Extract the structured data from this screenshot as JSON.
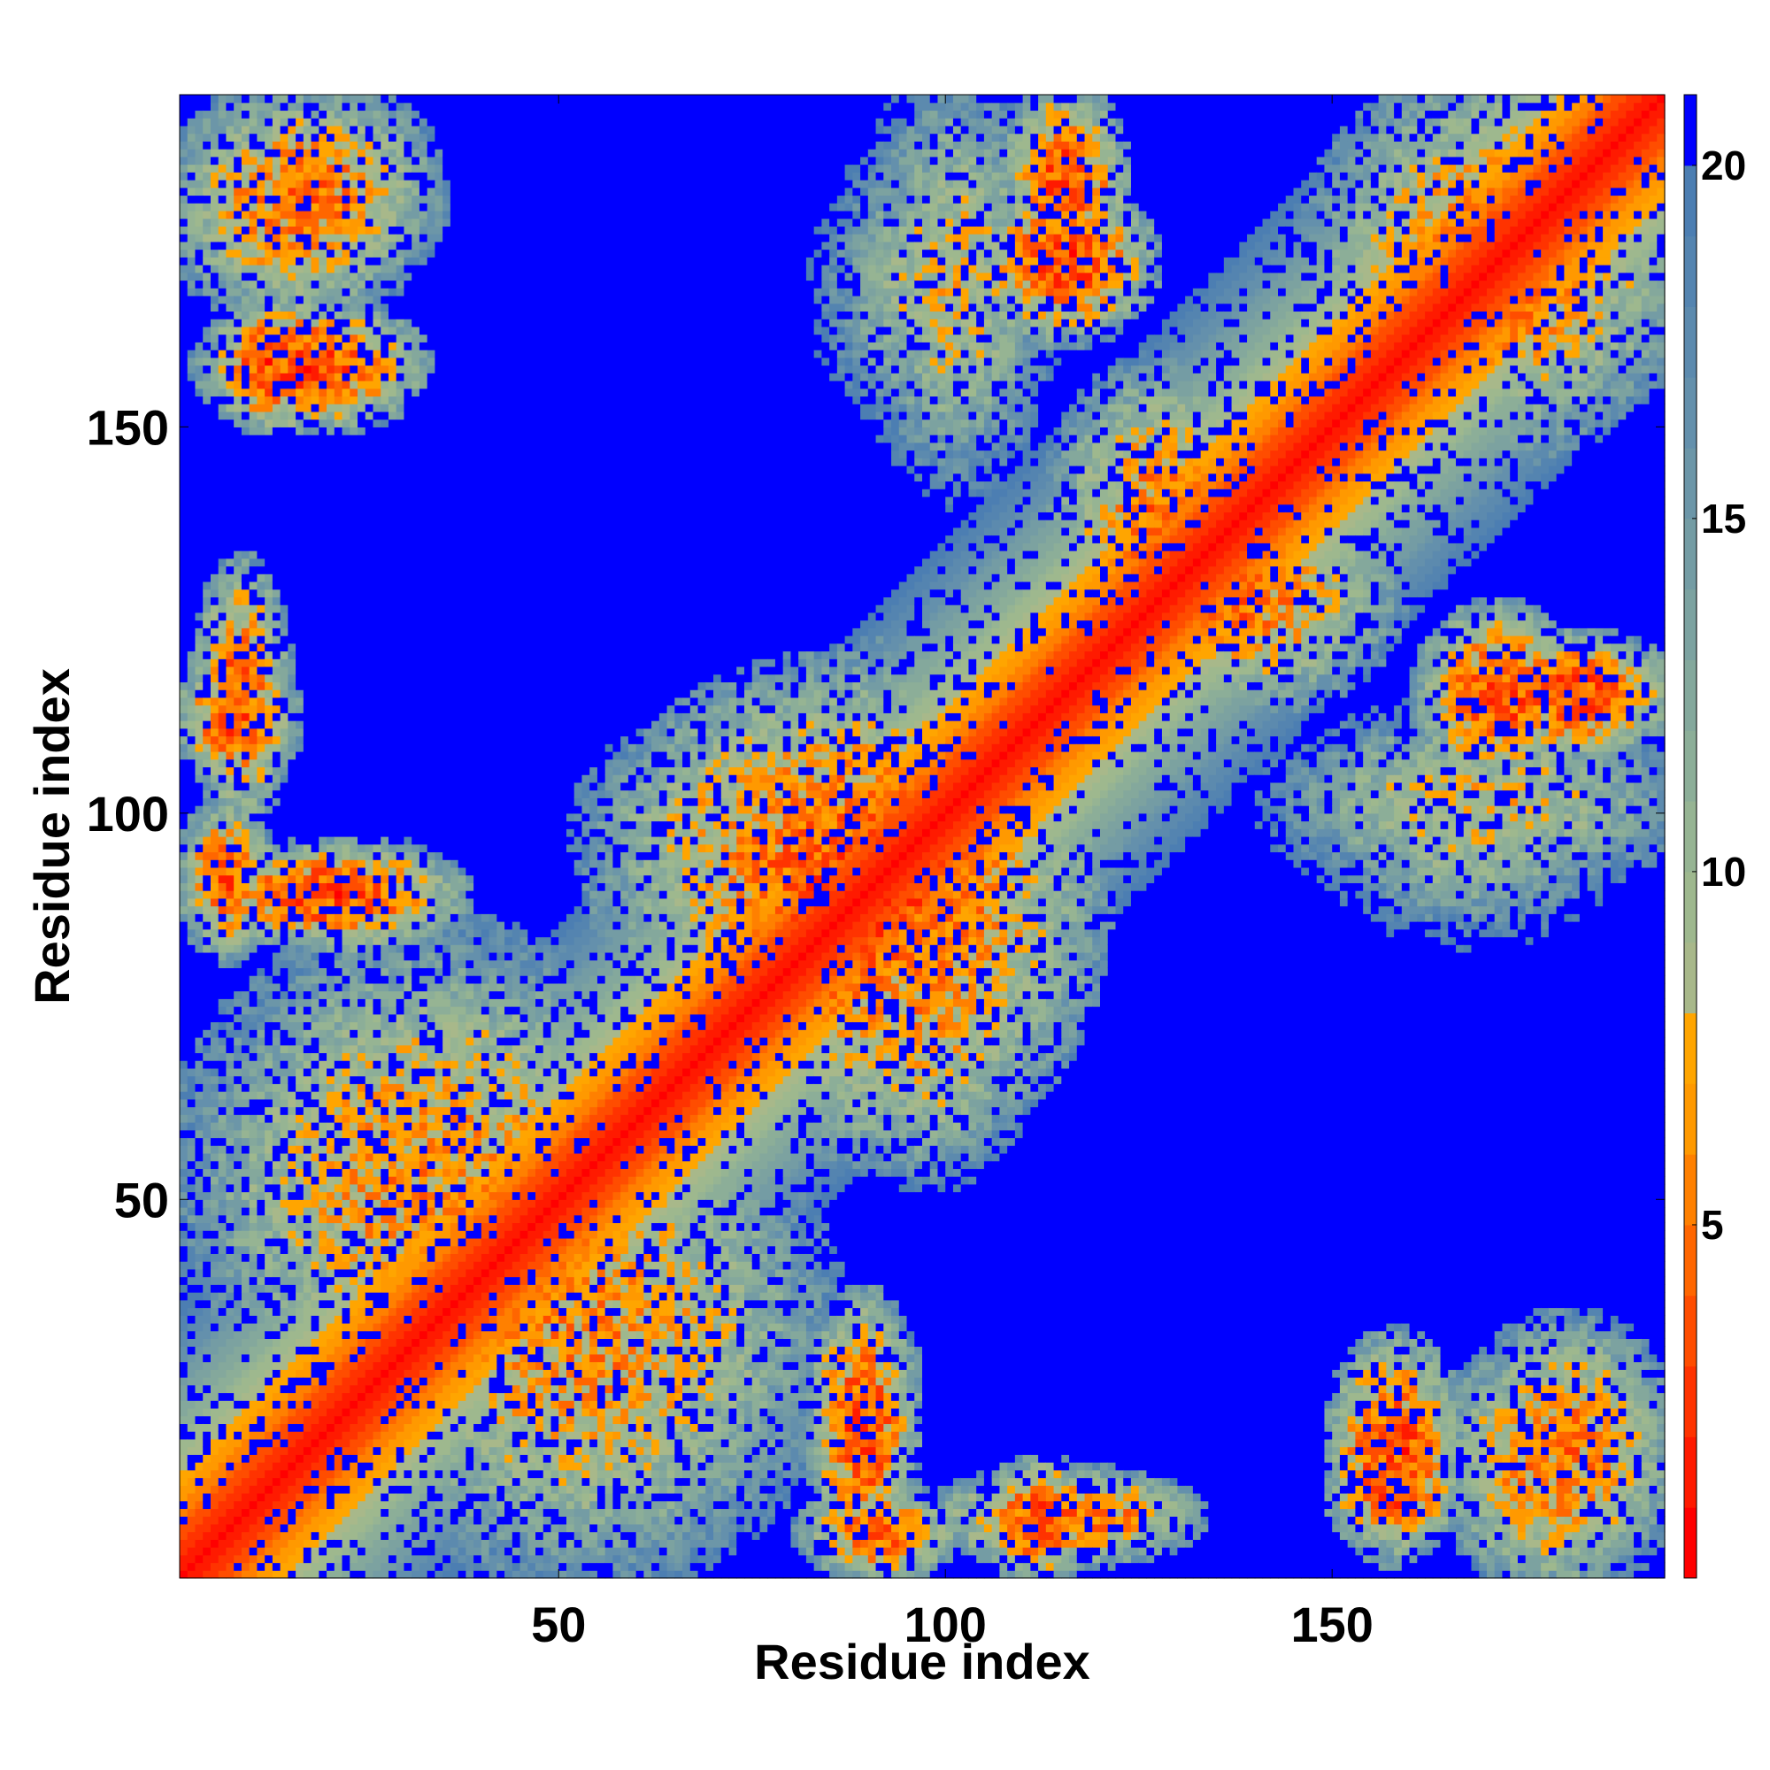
{
  "chart_data": {
    "type": "heatmap",
    "title": "",
    "xlabel": "Residue index",
    "ylabel": "Residue index",
    "n_residues": 192,
    "xlim": [
      1,
      192
    ],
    "ylim": [
      1,
      192
    ],
    "x_ticks": [
      50,
      100,
      150
    ],
    "y_ticks": [
      50,
      100,
      150
    ],
    "x_tick_labels": [
      "50",
      "100",
      "150"
    ],
    "y_tick_labels": [
      "50",
      "100",
      "150"
    ],
    "grid": false,
    "legend": "none",
    "colorbar": {
      "placement": "right",
      "min": 0,
      "max": 21,
      "ticks": [
        5,
        10,
        15,
        20
      ],
      "tick_labels": [
        "5",
        "10",
        "15",
        "20"
      ],
      "levels": [
        {
          "from": 0,
          "to": 1,
          "color": "#ff0000"
        },
        {
          "from": 1,
          "to": 2,
          "color": "#ff1a00"
        },
        {
          "from": 2,
          "to": 3,
          "color": "#ff3300"
        },
        {
          "from": 3,
          "to": 4,
          "color": "#ff4d00"
        },
        {
          "from": 4,
          "to": 5,
          "color": "#ff6600"
        },
        {
          "from": 5,
          "to": 6,
          "color": "#ff8000"
        },
        {
          "from": 6,
          "to": 7,
          "color": "#ff9900"
        },
        {
          "from": 7,
          "to": 8,
          "color": "#ffa500"
        },
        {
          "from": 8,
          "to": 9,
          "color": "#a8b88a"
        },
        {
          "from": 9,
          "to": 10,
          "color": "#9eb88e"
        },
        {
          "from": 10,
          "to": 11,
          "color": "#96b493"
        },
        {
          "from": 11,
          "to": 12,
          "color": "#8cae98"
        },
        {
          "from": 12,
          "to": 13,
          "color": "#84a89c"
        },
        {
          "from": 13,
          "to": 14,
          "color": "#7ca2a0"
        },
        {
          "from": 14,
          "to": 15,
          "color": "#749ca4"
        },
        {
          "from": 15,
          "to": 16,
          "color": "#6c96a8"
        },
        {
          "from": 16,
          "to": 17,
          "color": "#6490ac"
        },
        {
          "from": 17,
          "to": 18,
          "color": "#5c8aae"
        },
        {
          "from": 18,
          "to": 19,
          "color": "#5484b0"
        },
        {
          "from": 19,
          "to": 20,
          "color": "#4c7eb2"
        },
        {
          "from": 20,
          "to": 21,
          "color": "#0000ff"
        }
      ]
    },
    "contact_regions": [
      {
        "x": [
          1,
          192
        ],
        "y": [
          1,
          192
        ],
        "shape": "diagonal",
        "min_distance": 0
      },
      {
        "x": [
          2,
          32
        ],
        "y": [
          168,
          192
        ],
        "min_distance": 6
      },
      {
        "x": [
          5,
          30
        ],
        "y": [
          150,
          165
        ],
        "min_distance": 4
      },
      {
        "x": [
          3,
          14
        ],
        "y": [
          100,
          130
        ],
        "min_distance": 5
      },
      {
        "x": [
          1,
          12
        ],
        "y": [
          82,
          100
        ],
        "min_distance": 5
      },
      {
        "x": [
          15,
          35
        ],
        "y": [
          82,
          95
        ],
        "min_distance": 6
      },
      {
        "x": [
          108,
          122
        ],
        "y": [
          170,
          192
        ],
        "min_distance": 4
      },
      {
        "x": [
          85,
          112
        ],
        "y": [
          150,
          185
        ],
        "min_distance": 10
      },
      {
        "x": [
          115,
          140
        ],
        "y": [
          120,
          155
        ],
        "min_distance": 6
      },
      {
        "x": [
          60,
          115
        ],
        "y": [
          70,
          115
        ],
        "min_distance": 5
      },
      {
        "x": [
          85,
          110
        ],
        "y": [
          55,
          90
        ],
        "min_distance": 8
      },
      {
        "x": [
          5,
          60
        ],
        "y": [
          25,
          80
        ],
        "min_distance": 7
      },
      {
        "x": [
          83,
          95
        ],
        "y": [
          5,
          35
        ],
        "min_distance": 4
      },
      {
        "x": [
          105,
          118
        ],
        "y": [
          1,
          15
        ],
        "min_distance": 4
      },
      {
        "x": [
          150,
          165
        ],
        "y": [
          5,
          20
        ],
        "min_distance": 4
      },
      {
        "x": [
          165,
          192
        ],
        "y": [
          1,
          30
        ],
        "min_distance": 6
      },
      {
        "x": [
          162,
          180
        ],
        "y": [
          105,
          125
        ],
        "min_distance": 4
      },
      {
        "x": [
          145,
          192
        ],
        "y": [
          90,
          112
        ],
        "min_distance": 9
      },
      {
        "x": [
          150,
          192
        ],
        "y": [
          150,
          192
        ],
        "min_distance": 6
      }
    ]
  }
}
